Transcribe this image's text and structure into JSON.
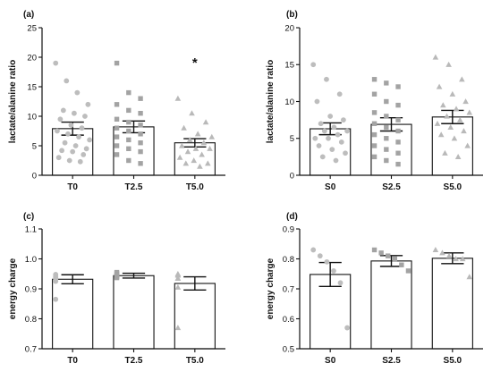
{
  "chart_data": [
    {
      "panel_label": "(a)",
      "type": "bar",
      "categories": [
        "T0",
        "T2.5",
        "T5.0"
      ],
      "values": [
        7.9,
        8.2,
        5.5
      ],
      "errors": [
        1.1,
        1.0,
        0.7
      ],
      "ylabel": "lactate/alanine ratio",
      "ylim": [
        0,
        25
      ],
      "yticks": [
        0,
        5,
        10,
        15,
        20,
        25
      ],
      "annotations": [
        {
          "category": "T5.0",
          "text": "*"
        }
      ],
      "points": [
        {
          "category": "T0",
          "marker": "circle",
          "values": [
            19.0,
            16.0,
            14.0,
            12.0,
            11.0,
            10.5,
            10.0,
            9.5,
            8.5,
            8.0,
            7.5,
            7.0,
            6.5,
            6.0,
            5.5,
            5.0,
            4.5,
            4.2,
            4.0,
            3.5,
            3.0,
            2.5,
            2.3
          ]
        },
        {
          "category": "T2.5",
          "marker": "square",
          "values": [
            19.0,
            14.0,
            13.0,
            12.0,
            11.0,
            10.5,
            9.5,
            9.0,
            8.5,
            8.0,
            7.5,
            7.0,
            6.5,
            6.0,
            5.5,
            5.0,
            4.5,
            4.0,
            3.5,
            2.5,
            2.0
          ]
        },
        {
          "category": "T5.0",
          "marker": "triangle",
          "values": [
            13.0,
            10.5,
            9.0,
            8.0,
            7.0,
            6.5,
            6.0,
            5.5,
            5.0,
            4.5,
            4.5,
            4.0,
            3.5,
            3.0,
            2.5,
            2.0,
            2.0,
            1.5
          ]
        }
      ]
    },
    {
      "panel_label": "(b)",
      "type": "bar",
      "categories": [
        "S0",
        "S2.5",
        "S5.0"
      ],
      "values": [
        6.3,
        6.9,
        7.9
      ],
      "errors": [
        0.8,
        0.9,
        0.9
      ],
      "ylabel": "lactate/alanine ratio",
      "ylim": [
        0,
        20
      ],
      "yticks": [
        0,
        5,
        10,
        15,
        20
      ],
      "points": [
        {
          "category": "S0",
          "marker": "circle",
          "values": [
            15.0,
            13.0,
            11.0,
            10.0,
            8.0,
            7.5,
            7.0,
            6.5,
            6.0,
            6.0,
            5.5,
            5.0,
            5.0,
            4.5,
            4.0,
            3.5,
            3.0,
            2.5,
            2.0
          ]
        },
        {
          "category": "S2.5",
          "marker": "square",
          "values": [
            13.0,
            12.5,
            12.0,
            11.0,
            10.0,
            9.5,
            8.5,
            8.0,
            7.5,
            7.0,
            6.5,
            6.0,
            5.5,
            5.0,
            4.5,
            4.0,
            3.5,
            3.0,
            2.5,
            2.0,
            1.5
          ]
        },
        {
          "category": "S5.0",
          "marker": "triangle",
          "values": [
            16.0,
            15.0,
            13.0,
            12.0,
            11.0,
            10.0,
            9.5,
            9.0,
            8.5,
            8.0,
            7.5,
            7.0,
            6.5,
            6.0,
            5.5,
            5.0,
            4.0,
            3.0,
            2.5
          ]
        }
      ]
    },
    {
      "panel_label": "(c)",
      "type": "bar",
      "categories": [
        "T0",
        "T2.5",
        "T5.0"
      ],
      "values": [
        0.932,
        0.944,
        0.918
      ],
      "errors": [
        0.015,
        0.008,
        0.022
      ],
      "ylabel": "energy charge",
      "ylim": [
        0.7,
        1.1
      ],
      "yticks": [
        0.7,
        0.8,
        0.9,
        1.0,
        1.1
      ],
      "ytick_labels": [
        "0.7",
        "0.8",
        "0.9",
        "1.0",
        "1.1"
      ],
      "points": [
        {
          "category": "T0",
          "marker": "circle",
          "values": [
            0.948,
            0.945,
            0.94,
            0.938,
            0.933,
            0.925,
            0.865
          ]
        },
        {
          "category": "T2.5",
          "marker": "square",
          "values": [
            0.955,
            0.952,
            0.948,
            0.945,
            0.943,
            0.94,
            0.937
          ]
        },
        {
          "category": "T5.0",
          "marker": "triangle",
          "values": [
            0.95,
            0.948,
            0.945,
            0.935,
            0.935,
            0.905,
            0.77
          ]
        }
      ]
    },
    {
      "panel_label": "(d)",
      "type": "bar",
      "categories": [
        "S0",
        "S2.5",
        "S5.0"
      ],
      "values": [
        0.748,
        0.793,
        0.802
      ],
      "errors": [
        0.04,
        0.018,
        0.018
      ],
      "ylabel": "energy charge",
      "ylim": [
        0.5,
        0.9
      ],
      "yticks": [
        0.5,
        0.6,
        0.7,
        0.8,
        0.9
      ],
      "points": [
        {
          "category": "S0",
          "marker": "circle",
          "values": [
            0.83,
            0.81,
            0.79,
            0.76,
            0.72,
            0.57
          ]
        },
        {
          "category": "S2.5",
          "marker": "square",
          "values": [
            0.83,
            0.82,
            0.81,
            0.8,
            0.78,
            0.76
          ]
        },
        {
          "category": "S5.0",
          "marker": "triangle",
          "values": [
            0.83,
            0.82,
            0.81,
            0.8,
            0.8,
            0.74
          ]
        }
      ]
    }
  ]
}
